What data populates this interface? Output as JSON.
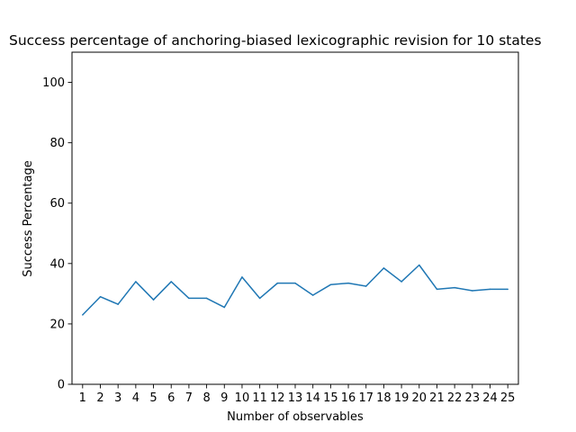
{
  "chart_data": {
    "type": "line",
    "title": "Success percentage of anchoring-biased lexicographic revision for 10 states",
    "xlabel": "Number of observables",
    "ylabel": "Success Percentage",
    "xlim": [
      0.4,
      25.6
    ],
    "ylim": [
      0,
      110
    ],
    "yticks": [
      0,
      20,
      40,
      60,
      80,
      100
    ],
    "grid": false,
    "legend": "none",
    "series": [
      {
        "color": "#1f77b4",
        "x": [
          1,
          2,
          3,
          4,
          5,
          6,
          7,
          8,
          9,
          10,
          11,
          12,
          13,
          14,
          15,
          16,
          17,
          18,
          19,
          20,
          21,
          22,
          23,
          24,
          25
        ],
        "values": [
          23.0,
          29.0,
          26.5,
          34.0,
          28.0,
          34.0,
          28.5,
          28.5,
          25.5,
          35.5,
          28.5,
          33.5,
          33.5,
          29.5,
          33.0,
          33.5,
          32.5,
          38.5,
          34.0,
          39.5,
          31.5,
          32.0,
          31.0,
          31.5,
          31.5
        ]
      }
    ]
  }
}
